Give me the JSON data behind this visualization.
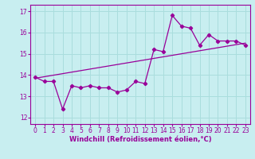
{
  "xlabel": "Windchill (Refroidissement éolien,°C)",
  "ylabel": "",
  "xlim": [
    -0.5,
    23.5
  ],
  "ylim": [
    11.7,
    17.3
  ],
  "xticks": [
    0,
    1,
    2,
    3,
    4,
    5,
    6,
    7,
    8,
    9,
    10,
    11,
    12,
    13,
    14,
    15,
    16,
    17,
    18,
    19,
    20,
    21,
    22,
    23
  ],
  "yticks": [
    12,
    13,
    14,
    15,
    16,
    17
  ],
  "background_color": "#c8eef0",
  "grid_color": "#aadddd",
  "line_color": "#990099",
  "series1_x": [
    0,
    1,
    2,
    3,
    4,
    5,
    6,
    7,
    8,
    9,
    10,
    11,
    12,
    13,
    14,
    15,
    16,
    17,
    18,
    19,
    20,
    21,
    22,
    23
  ],
  "series1_y": [
    13.9,
    13.7,
    13.7,
    12.4,
    13.5,
    13.4,
    13.5,
    13.4,
    13.4,
    13.2,
    13.3,
    13.7,
    13.6,
    15.2,
    15.1,
    16.8,
    16.3,
    16.2,
    15.4,
    15.9,
    15.6,
    15.6,
    15.6,
    15.4
  ],
  "series2_x": [
    0,
    23
  ],
  "series2_y": [
    13.85,
    15.5
  ]
}
